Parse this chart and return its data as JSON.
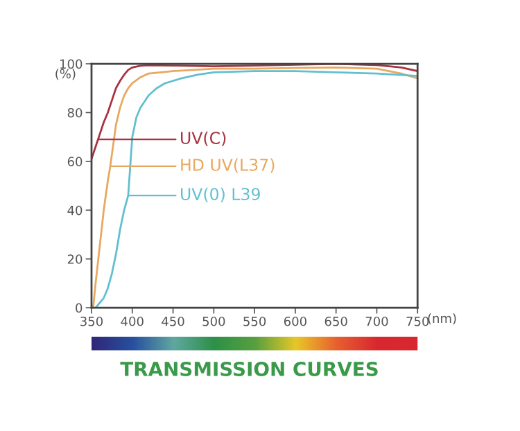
{
  "chart_data": {
    "type": "line",
    "title": "TRANSMISSION CURVES",
    "xlabel": "(nm)",
    "ylabel": "(%)",
    "xlim": [
      350,
      750
    ],
    "xticks": [
      350,
      400,
      450,
      500,
      550,
      600,
      650,
      700,
      750
    ],
    "ylim": [
      0,
      100
    ],
    "yticks": [
      0,
      20,
      40,
      60,
      80,
      100
    ],
    "grid": false,
    "legend": "left",
    "marker": "none",
    "line_style": "solid",
    "series": [
      {
        "name": "UV(C)",
        "color": "#a83240",
        "x": [
          350,
          355,
          360,
          365,
          370,
          375,
          380,
          385,
          390,
          395,
          400,
          410,
          420,
          450,
          500,
          550,
          600,
          650,
          700,
          730,
          750
        ],
        "values": [
          61,
          66,
          71,
          76,
          80,
          85,
          90,
          93,
          95.5,
          97.5,
          98.5,
          99.2,
          99.4,
          99.3,
          99,
          99.3,
          99.6,
          100,
          99.5,
          98.5,
          97
        ]
      },
      {
        "name": "HD UV(L37)",
        "color": "#e8a860",
        "x": [
          352,
          355,
          360,
          365,
          370,
          373,
          380,
          385,
          390,
          395,
          400,
          410,
          420,
          450,
          500,
          550,
          600,
          650,
          700,
          730,
          750
        ],
        "values": [
          0,
          10,
          25,
          40,
          52,
          58,
          75,
          82,
          87,
          90,
          92,
          94.5,
          96,
          97,
          98,
          98,
          98.3,
          98.5,
          98,
          96,
          94
        ]
      },
      {
        "name": "UV(0) L39",
        "color": "#60c0d0",
        "x": [
          355,
          360,
          365,
          370,
          375,
          380,
          385,
          390,
          395,
          400,
          405,
          410,
          420,
          430,
          440,
          460,
          480,
          500,
          550,
          600,
          650,
          700,
          750
        ],
        "values": [
          0,
          2,
          4,
          8,
          14,
          22,
          32,
          40,
          46,
          70,
          78,
          82,
          87,
          90,
          92,
          94,
          95.5,
          96.5,
          97,
          97,
          96.5,
          96,
          95
        ]
      }
    ]
  }
}
